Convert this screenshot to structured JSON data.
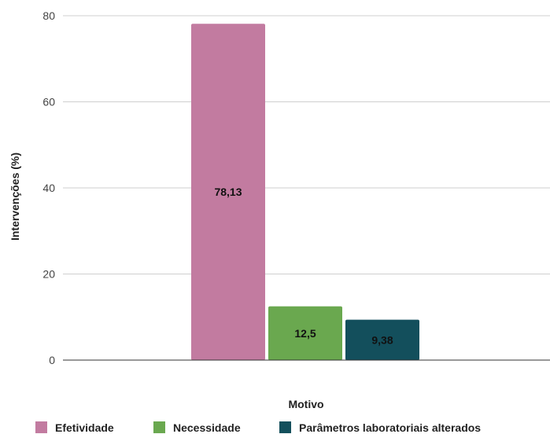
{
  "chart_data": {
    "type": "bar",
    "xlabel": "Motivo",
    "ylabel": "Intervenções (%)",
    "ylim": [
      0,
      80
    ],
    "yticks": [
      0,
      20,
      40,
      60,
      80
    ],
    "grid": true,
    "legend_position": "bottom",
    "categories": [
      "Efetividade",
      "Necessidade",
      "Parâmetros laboratoriais alterados"
    ],
    "values": [
      78.13,
      12.5,
      9.38
    ],
    "data_labels": [
      "78,13",
      "12,5",
      "9,38"
    ],
    "colors": [
      "#c27ba0",
      "#6aa84f",
      "#134f5c"
    ]
  }
}
